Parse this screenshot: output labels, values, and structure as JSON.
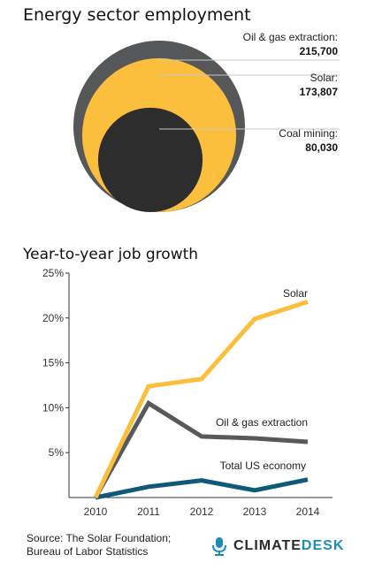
{
  "chart_data": [
    {
      "type": "bubble",
      "title": "Energy sector employment",
      "items": [
        {
          "name": "Oil & gas extraction:",
          "value_label": "215,700",
          "value": 215700,
          "color": "#555759"
        },
        {
          "name": "Solar:",
          "value_label": "173,807",
          "value": 173807,
          "color": "#fbbf3d"
        },
        {
          "name": "Coal mining:",
          "value_label": "80,030",
          "value": 80030,
          "color": "#2d2d2d"
        }
      ]
    },
    {
      "type": "line",
      "title": "Year-to-year job growth",
      "x": [
        "2010",
        "2011",
        "2012",
        "2013",
        "2014"
      ],
      "ylim": [
        0,
        25
      ],
      "yticks": [
        "5%",
        "10%",
        "15%",
        "20%",
        "25%"
      ],
      "ytick_values": [
        5,
        10,
        15,
        20,
        25
      ],
      "series": [
        {
          "name": "Solar",
          "values": [
            0,
            12.4,
            13.2,
            19.9,
            21.8
          ],
          "color": "#fbbf3d"
        },
        {
          "name": "Oil & gas extraction",
          "values": [
            0,
            10.5,
            6.8,
            6.6,
            6.2
          ],
          "color": "#58595b"
        },
        {
          "name": "Total US economy",
          "values": [
            0,
            1.2,
            1.9,
            0.8,
            2.0
          ],
          "color": "#0e5a78"
        }
      ]
    }
  ],
  "source": {
    "line1": "Source: The Solar Foundation;",
    "line2": "Bureau of Labor Statistics"
  },
  "logo": {
    "part1": "CLIMATE",
    "part2": "DESK",
    "icon": "microphone-icon"
  }
}
